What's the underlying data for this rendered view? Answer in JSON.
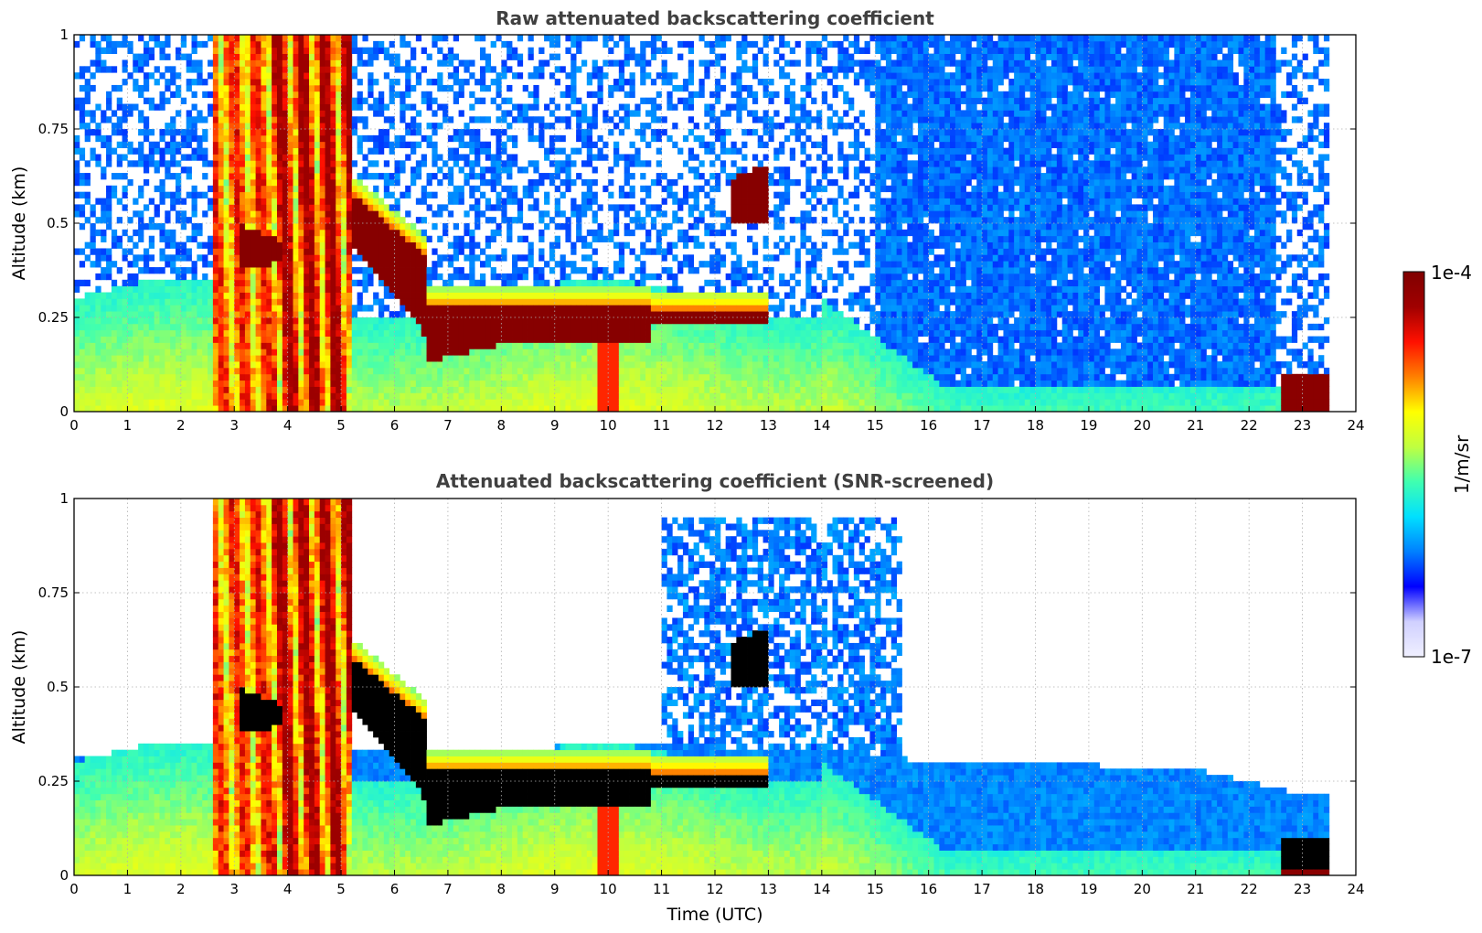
{
  "colors": {
    "colormap": [
      "#f0f0ff",
      "#d0d0ff",
      "#0000ff",
      "#0080ff",
      "#00e0ff",
      "#40ffb0",
      "#c0ff40",
      "#ffff00",
      "#ff8000",
      "#ff1000",
      "#a00000",
      "#800000"
    ],
    "saturated_screened": "#000000",
    "grid": "#b0b0b0",
    "title": "#404040"
  },
  "colorbar": {
    "label": "1/m/sr",
    "max_label": "1e-4",
    "min_label": "1e-7",
    "range": [
      1e-07,
      0.0001
    ],
    "scale": "log"
  },
  "chart_data": [
    {
      "type": "heatmap",
      "title": "Raw attenuated backscattering coefficient",
      "xlabel": "",
      "ylabel": "Altitude (km)",
      "xlim": [
        0,
        24
      ],
      "ylim": [
        0,
        1
      ],
      "xticks": [
        "0",
        "1",
        "2",
        "3",
        "4",
        "5",
        "6",
        "7",
        "8",
        "9",
        "10",
        "11",
        "12",
        "13",
        "14",
        "15",
        "16",
        "17",
        "18",
        "19",
        "20",
        "21",
        "22",
        "23",
        "24"
      ],
      "yticks": [
        "0",
        "0.25",
        "0.5",
        "0.75",
        "1"
      ],
      "grid": true,
      "features": {
        "precipitation_hours": [
          2.6,
          5.15
        ],
        "cloud_layer_base_top": [
          {
            "t": 6.6,
            "base": 0.12,
            "top": 0.28
          },
          {
            "t": 8.0,
            "base": 0.17,
            "top": 0.29
          },
          {
            "t": 10.0,
            "base": 0.16,
            "top": 0.28
          },
          {
            "t": 11.5,
            "base": 0.22,
            "top": 0.27
          },
          {
            "t": 12.8,
            "base": 0.26,
            "top": 0.29
          }
        ],
        "elevated_cloud": {
          "t": [
            12.3,
            13.0
          ],
          "alt": [
            0.5,
            0.65
          ]
        },
        "surface_fog": {
          "t": [
            22.6,
            23.5
          ],
          "alt": [
            0.0,
            0.1
          ]
        },
        "data_end_hour": 23.5
      }
    },
    {
      "type": "heatmap",
      "title": "Attenuated backscattering coefficient (SNR-screened)",
      "xlabel": "Time (UTC)",
      "ylabel": "Altitude (km)",
      "xlim": [
        0,
        24
      ],
      "ylim": [
        0,
        1
      ],
      "xticks": [
        "0",
        "1",
        "2",
        "3",
        "4",
        "5",
        "6",
        "7",
        "8",
        "9",
        "10",
        "11",
        "12",
        "13",
        "14",
        "15",
        "16",
        "17",
        "18",
        "19",
        "20",
        "21",
        "22",
        "23",
        "24"
      ],
      "yticks": [
        "0",
        "0.25",
        "0.5",
        "0.75",
        "1"
      ],
      "grid": true,
      "features": {
        "snr_top_profile": [
          {
            "t": 0,
            "alt": 0.32
          },
          {
            "t": 1.5,
            "alt": 0.3
          },
          {
            "t": 2.5,
            "alt": 0.35
          },
          {
            "t": 7,
            "alt": 0.33
          },
          {
            "t": 10.5,
            "alt": 0.35
          },
          {
            "t": 14.5,
            "alt": 0.33
          },
          {
            "t": 16,
            "alt": 0.3
          },
          {
            "t": 18,
            "alt": 0.3
          },
          {
            "t": 21,
            "alt": 0.28
          },
          {
            "t": 22.5,
            "alt": 0.23
          },
          {
            "t": 23.5,
            "alt": 0.21
          }
        ],
        "data_end_hour": 23.5
      }
    }
  ]
}
